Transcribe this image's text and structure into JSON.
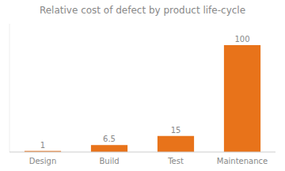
{
  "chart_data": {
    "type": "bar",
    "title": "Relative cost of defect by product life-cycle",
    "categories": [
      "Design",
      "Build",
      "Test",
      "Maintenance"
    ],
    "values": [
      1,
      6.5,
      15,
      100
    ],
    "color": "#E8731A",
    "ylim": [
      0,
      120
    ],
    "data_labels": true,
    "tick_labels": "x",
    "grid": false
  }
}
